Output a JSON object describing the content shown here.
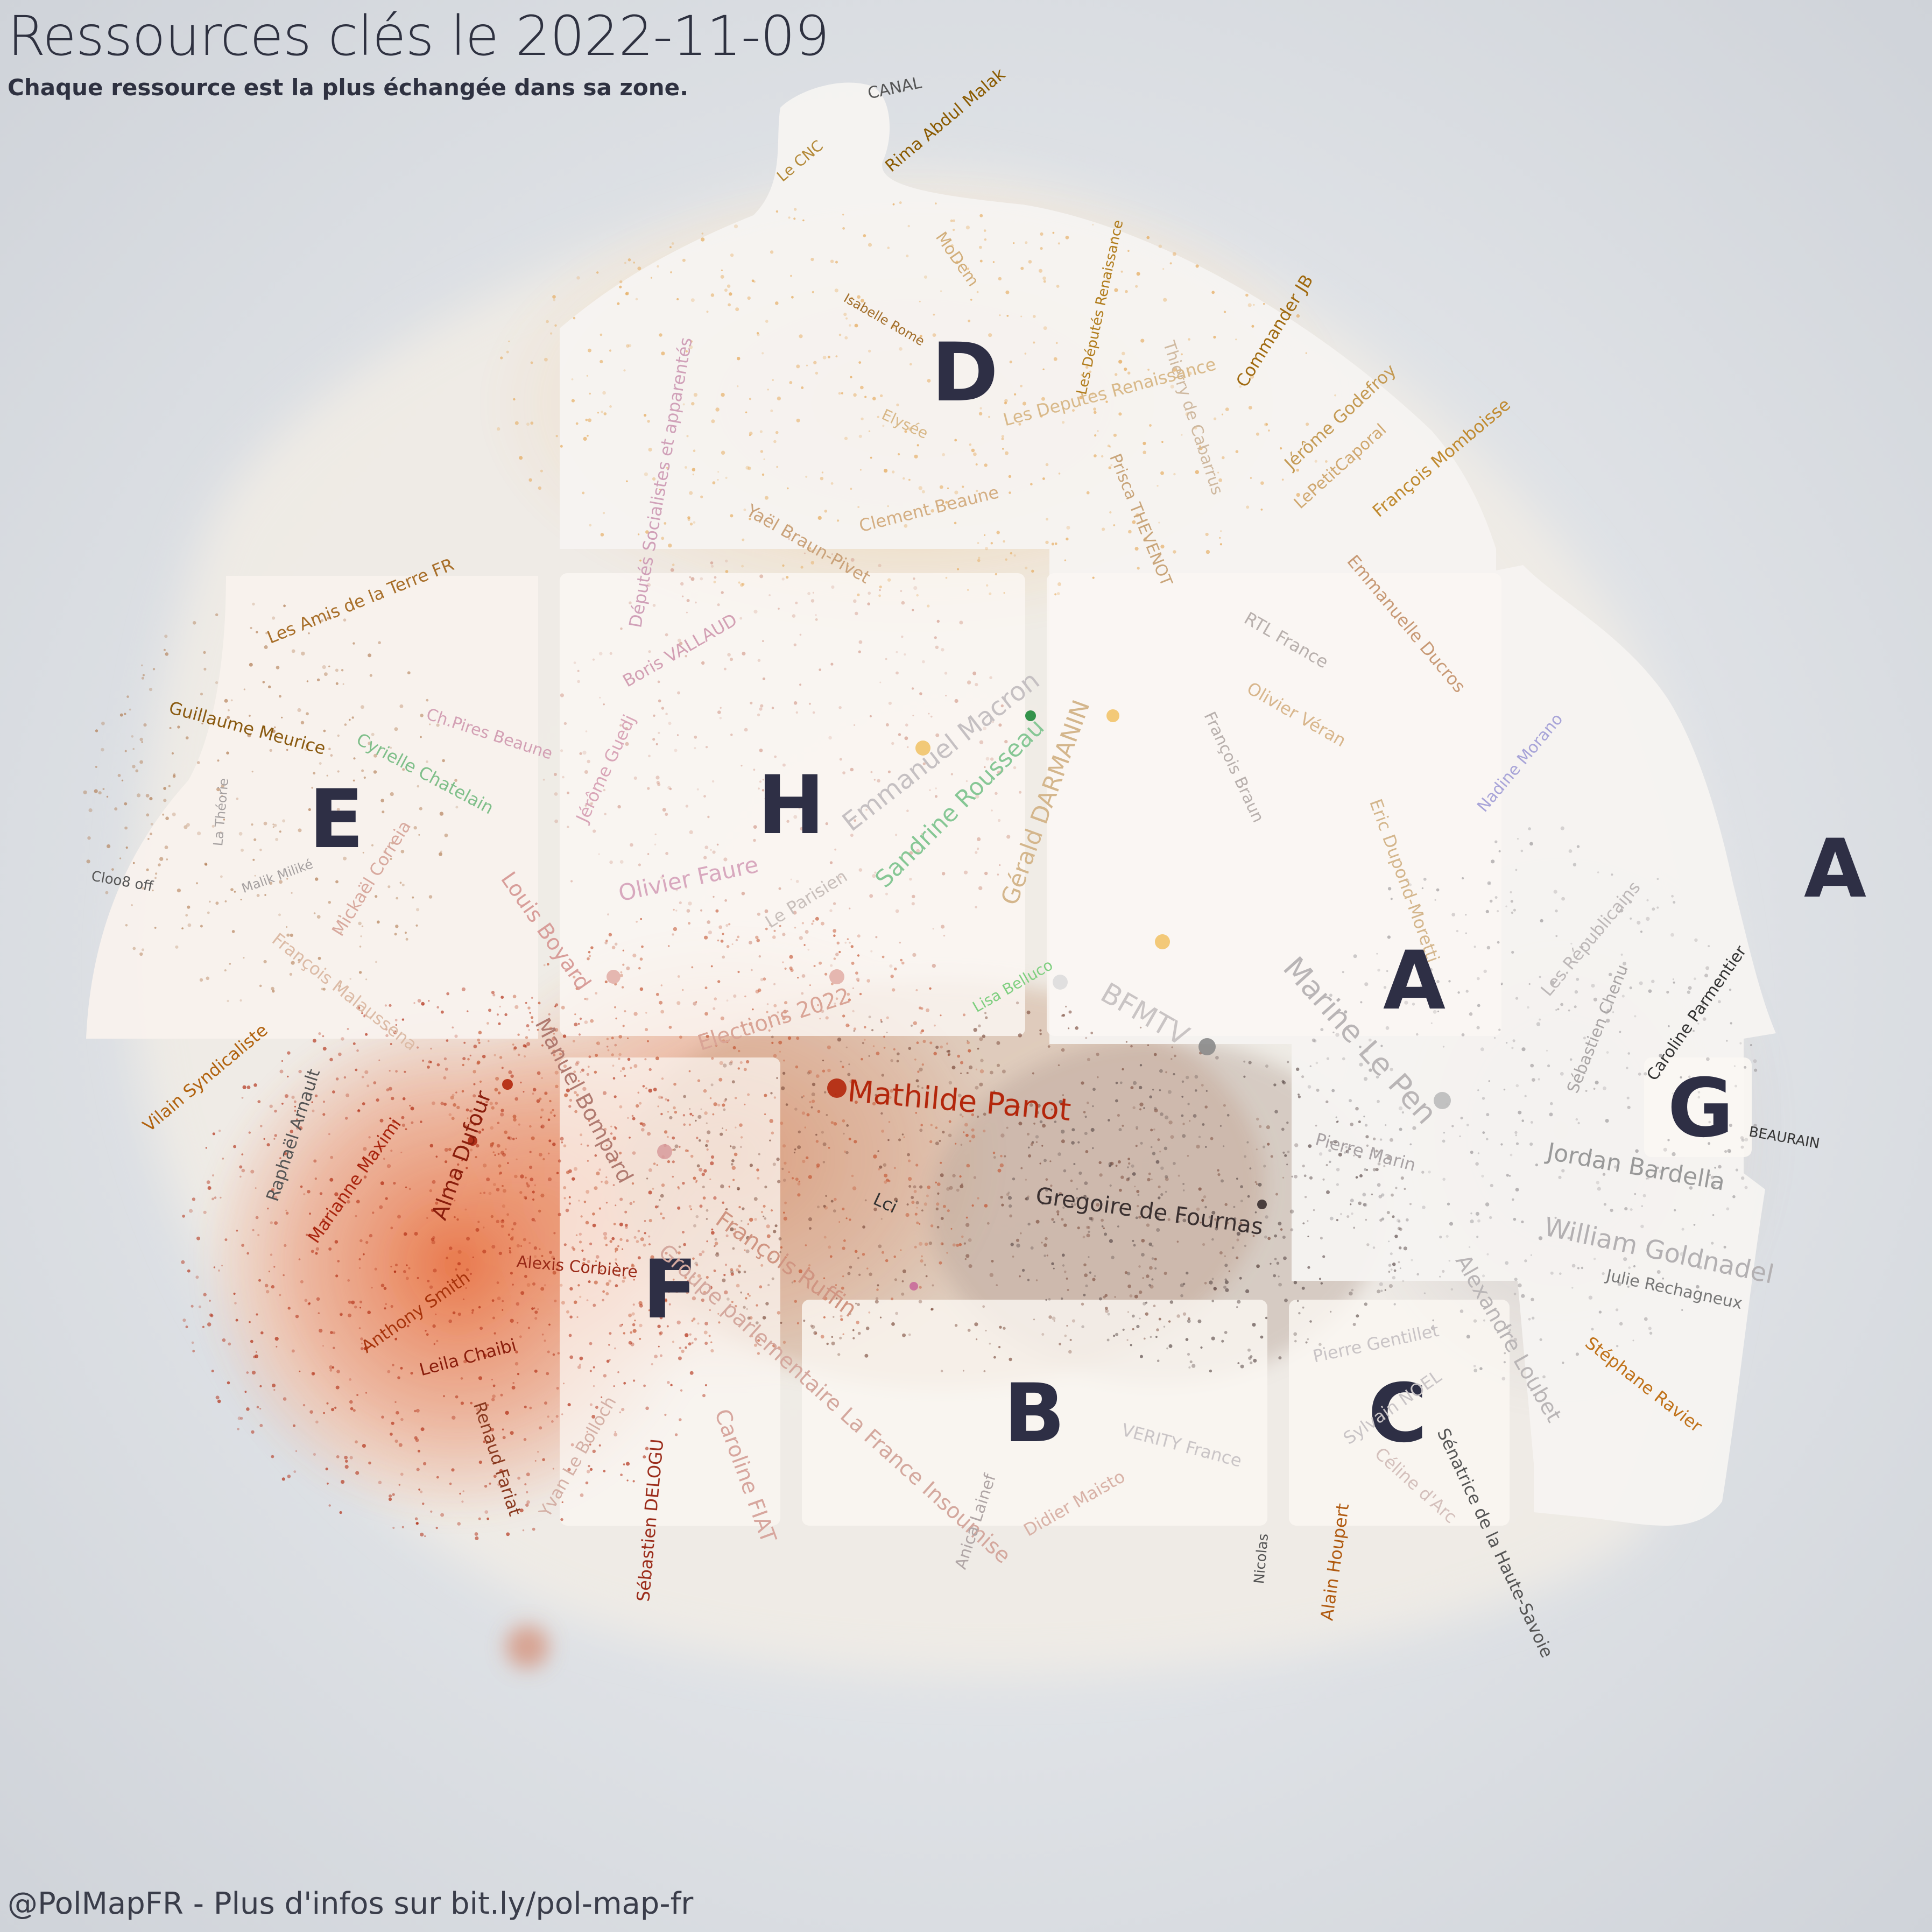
{
  "header": {
    "title": "Ressources clés le 2022-11-09",
    "subtitle": "Chaque ressource est la plus échangée dans sa zone."
  },
  "footer": {
    "credit": "@PolMapFR - Plus d'infos sur bit.ly/pol-map-fr"
  },
  "colors": {
    "background": "#dfe2e6",
    "zone_fill": "#fbf7f3",
    "zone_letter": "#2e2f45",
    "left_wing": "#b5270f",
    "right_wing": "#8a8a8a",
    "center": "#c98a1c"
  },
  "zones": [
    "A",
    "B",
    "C",
    "D",
    "E",
    "F",
    "G",
    "H",
    "A"
  ],
  "resources": [
    "Ressources clés",
    "CANAL",
    "Le CNC",
    "Rima Abdul Malak",
    "MoDem",
    "Les Députés Renaissance",
    "Commander JB",
    "Isabelle Rome",
    "Thierry de Cabarrus",
    "Jérôme Godefroy",
    "François Momboisse",
    "LePetitCaporal",
    "Elysée",
    "Les Deputes Renaissance",
    "Prisca THEVENOT",
    "Clement Beaune",
    "Yaël Braun-Pivet",
    "Députés Socialistes et apparentés",
    "Les Amis de la Terre FR",
    "Guillaume Meurice",
    "Ch.Pires Beaune",
    "Cyrielle Chatelain",
    "Boris VALLAUD",
    "Emmanuel Macron",
    "Jérôme Guedj",
    "Sandrine Rousseau",
    "Gérald DARMANIN",
    "RTL France",
    "Emmanuelle Ducros",
    "Olivier Véran",
    "François Braun",
    "Nadine Morano",
    "Eric Dupond-Moretti",
    "Le Parisien",
    "Olivier Faure",
    "Louis Boyard",
    "Mickaël Correia",
    "Malik Miliké",
    "Cloo8 off",
    "François Malaussena",
    "Lisa Belluco",
    "BFMTV",
    "Marine Le Pen",
    "Les Républicains",
    "Sébastien Chenu",
    "Caroline Parmentier",
    "Elections 2022",
    "Manuel Bompard",
    "Mathilde Panot",
    "Vilain Syndicaliste",
    "Raphaël Arnault",
    "Alma Dufour",
    "Marianne Maximi",
    "Pierre Marin",
    "Jordan Bardella",
    "BEAURAIN",
    "Gregoire de Fournas",
    "Lci",
    "François Ruffin",
    "William Goldnadel",
    "Alexis Corbière",
    "Anthony Smith",
    "Groupe parlementaire La France Insoumise",
    "Alexandre Loubet",
    "Julie Rechagneux",
    "Leila Chaibi",
    "Renaud Fariat",
    "Pierre Gentillet",
    "Stéphane Ravier",
    "Sylvain NOEL",
    "Yvan Le Bolloch",
    "Caroline FIAT",
    "VERITY France",
    "Sénatrice de la Haute-Savoie",
    "Céline d'Arc",
    "Sébastien DELOGU",
    "Anica Lainef",
    "Didier Maisto",
    "Nicolas",
    "Alain Houpert",
    "La Théorie"
  ]
}
